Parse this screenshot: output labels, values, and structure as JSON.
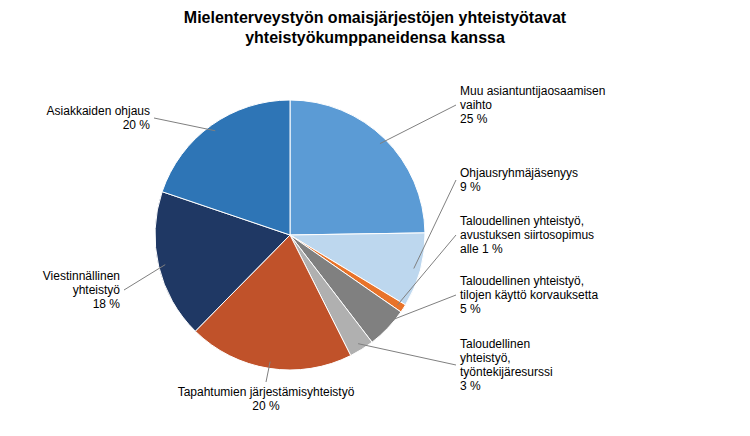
{
  "chart_data": {
    "type": "pie",
    "title": "Mielenterveystyön omaisjärjestöjen yhteistyötavat\nyhteistyökumppaneidensa kanssa",
    "categories": [
      "Muu asiantuntijaosaamisen\nvaihto\n25 %",
      "Ohjausryhmäjäsenyys\n9 %",
      "Taloudellinen yhteistyö,\navustuksen siirtosopimus\nalle 1 %",
      "Taloudellinen yhteistyö,\ntilojen käyttö korvauksetta\n5 %",
      "Taloudellinen\nyhteistyö,\ntyöntekijäresurssi\n3 %",
      "Tapahtumien järjestämisyhteistyö\n20 %",
      "Viestinnällinen\nyhteistyö\n18 %",
      "Asiakkaiden ohjaus\n20 %"
    ],
    "values": [
      25,
      9,
      1,
      5,
      3,
      20,
      18,
      20
    ],
    "colors": [
      "#5b9bd5",
      "#bdd7ee",
      "#e8732a",
      "#808080",
      "#b0b0b0",
      "#c0522a",
      "#1f3864",
      "#2e75b6"
    ]
  }
}
